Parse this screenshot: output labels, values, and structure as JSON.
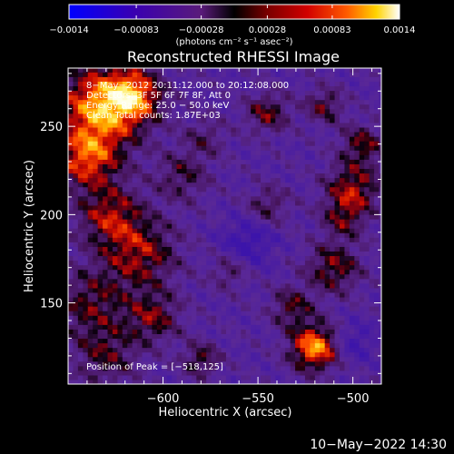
{
  "chart_data": {
    "type": "heatmap",
    "title": "Reconstructed RHESSI Image",
    "xlabel": "Heliocentric X (arcsec)",
    "ylabel": "Heliocentric Y (arcsec)",
    "xlim": [
      -650,
      -485
    ],
    "ylim": [
      104,
      283
    ],
    "x_ticks": [
      -600,
      -550,
      -500
    ],
    "x_tick_labels": [
      "−600",
      "−550",
      "−500"
    ],
    "y_ticks": [
      150,
      200,
      250
    ],
    "y_tick_labels": [
      "150",
      "200",
      "250"
    ],
    "colorbar": {
      "range": [
        -0.0014,
        0.0014
      ],
      "ticks": [
        -0.0014,
        -0.00083,
        -0.00028,
        0.00028,
        0.00083,
        0.0014
      ],
      "tick_labels": [
        "−0.0014",
        "−0.00083",
        "−0.00028",
        "0.00028",
        "0.00083",
        "0.0014"
      ],
      "units_label": "(photons cm⁻² s⁻¹ asec⁻²)"
    },
    "annotations": [
      "8−May−2012 20:11:12.000 to 20:12:08.000",
      "Detectors: 3F 5F 6F 7F 8F, Att 0",
      "Energy Range: 25.0 − 50.0 keV",
      "Clean      Total counts: 1.87E+03"
    ],
    "peak_label": "Position of Peak = [−518,125]",
    "peak": [
      -518,
      125
    ]
  },
  "footer": {
    "timestamp": "10−May−2022 14:30"
  }
}
